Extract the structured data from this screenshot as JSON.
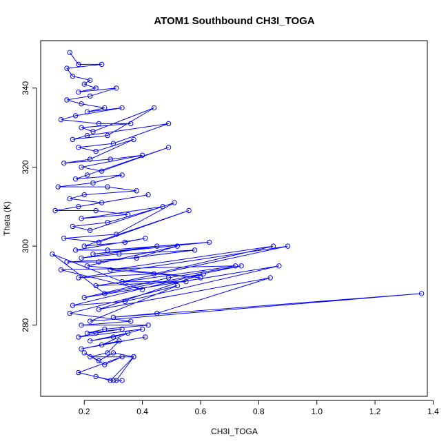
{
  "chart_data": {
    "type": "line",
    "title": "ATOM1 Southbound CH3I_TOGA",
    "xlabel": "CH3I_TOGA",
    "ylabel": "Theta (K)",
    "xlim": [
      0.05,
      1.38
    ],
    "ylim": [
      262,
      352
    ],
    "x_ticks": [
      0.2,
      0.4,
      0.6,
      0.8,
      1.0,
      1.2,
      1.4
    ],
    "x_tick_labels": [
      "0.2",
      "0.4",
      "0.6",
      "0.8",
      "1.0",
      "1.2",
      "1.4"
    ],
    "y_ticks": [
      280,
      300,
      320,
      340
    ],
    "y_tick_labels": [
      "280",
      "300",
      "320",
      "340"
    ],
    "series_color": "#0000ff",
    "marker": "open-circle",
    "grid": false,
    "series": [
      {
        "x": [
          0.15,
          0.18,
          0.26,
          0.14,
          0.16,
          0.22,
          0.2,
          0.24,
          0.18,
          0.31,
          0.22,
          0.14,
          0.19,
          0.27,
          0.21,
          0.33,
          0.17,
          0.12,
          0.25,
          0.36,
          0.19,
          0.23,
          0.44,
          0.28,
          0.16,
          0.21,
          0.49,
          0.3,
          0.18,
          0.24,
          0.37,
          0.22,
          0.13,
          0.29,
          0.4,
          0.19,
          0.26,
          0.49,
          0.21,
          0.17,
          0.33,
          0.23,
          0.11,
          0.28,
          0.38,
          0.2,
          0.15,
          0.26,
          0.42,
          0.18,
          0.1,
          0.24,
          0.35,
          0.19,
          0.47,
          0.28,
          0.16,
          0.22,
          0.51,
          0.31,
          0.13,
          0.25,
          0.56,
          0.2,
          0.34,
          0.41,
          0.17,
          0.28,
          0.63,
          0.23,
          0.45,
          0.19,
          0.32,
          0.58,
          0.25,
          0.14,
          0.38,
          0.52,
          0.21,
          0.6,
          0.29,
          0.85,
          0.44,
          0.18,
          0.9,
          0.33,
          0.55,
          0.24,
          0.72,
          0.12,
          0.4,
          0.09,
          0.27,
          0.74,
          0.49,
          0.2,
          0.87,
          0.34,
          0.16,
          0.61,
          0.25,
          0.84,
          0.45,
          0.3,
          1.36,
          0.22,
          0.52,
          0.15,
          0.36,
          0.19,
          0.42,
          0.27,
          0.21,
          0.33,
          0.24,
          0.18,
          0.4,
          0.3,
          0.22,
          0.35,
          0.26,
          0.41,
          0.19,
          0.32,
          0.28,
          0.22,
          0.37,
          0.3,
          0.25,
          0.2,
          0.27,
          0.33,
          0.18,
          0.3,
          0.24,
          0.29,
          0.37,
          0.31,
          0.33
        ],
        "y": [
          349,
          346,
          346,
          345,
          343,
          342,
          341,
          340,
          339,
          340,
          338,
          337,
          336,
          335,
          334,
          335,
          333,
          332,
          331,
          331,
          330,
          329,
          335,
          328,
          327,
          328,
          331,
          326,
          325,
          324,
          327,
          322,
          321,
          322,
          323,
          320,
          319,
          325,
          318,
          317,
          318,
          316,
          315,
          315,
          314,
          313,
          312,
          311,
          313,
          310,
          309,
          309,
          308,
          307,
          310,
          306,
          305,
          304,
          311,
          303,
          302,
          301,
          309,
          300,
          301,
          302,
          299,
          299,
          301,
          298,
          300,
          297,
          298,
          299,
          296,
          296,
          297,
          300,
          295,
          292,
          294,
          300,
          293,
          292,
          300,
          291,
          291,
          290,
          295,
          294,
          289,
          298,
          288,
          295,
          292,
          287,
          295,
          286,
          285,
          293,
          284,
          292,
          283,
          282,
          288,
          281,
          290,
          283,
          281,
          280,
          280,
          279,
          278,
          279,
          278,
          277,
          279,
          277,
          276,
          278,
          275,
          277,
          274,
          276,
          273,
          272,
          272,
          273,
          271,
          273,
          270,
          272,
          268,
          266,
          267,
          266,
          272,
          266,
          266
        ]
      }
    ]
  }
}
